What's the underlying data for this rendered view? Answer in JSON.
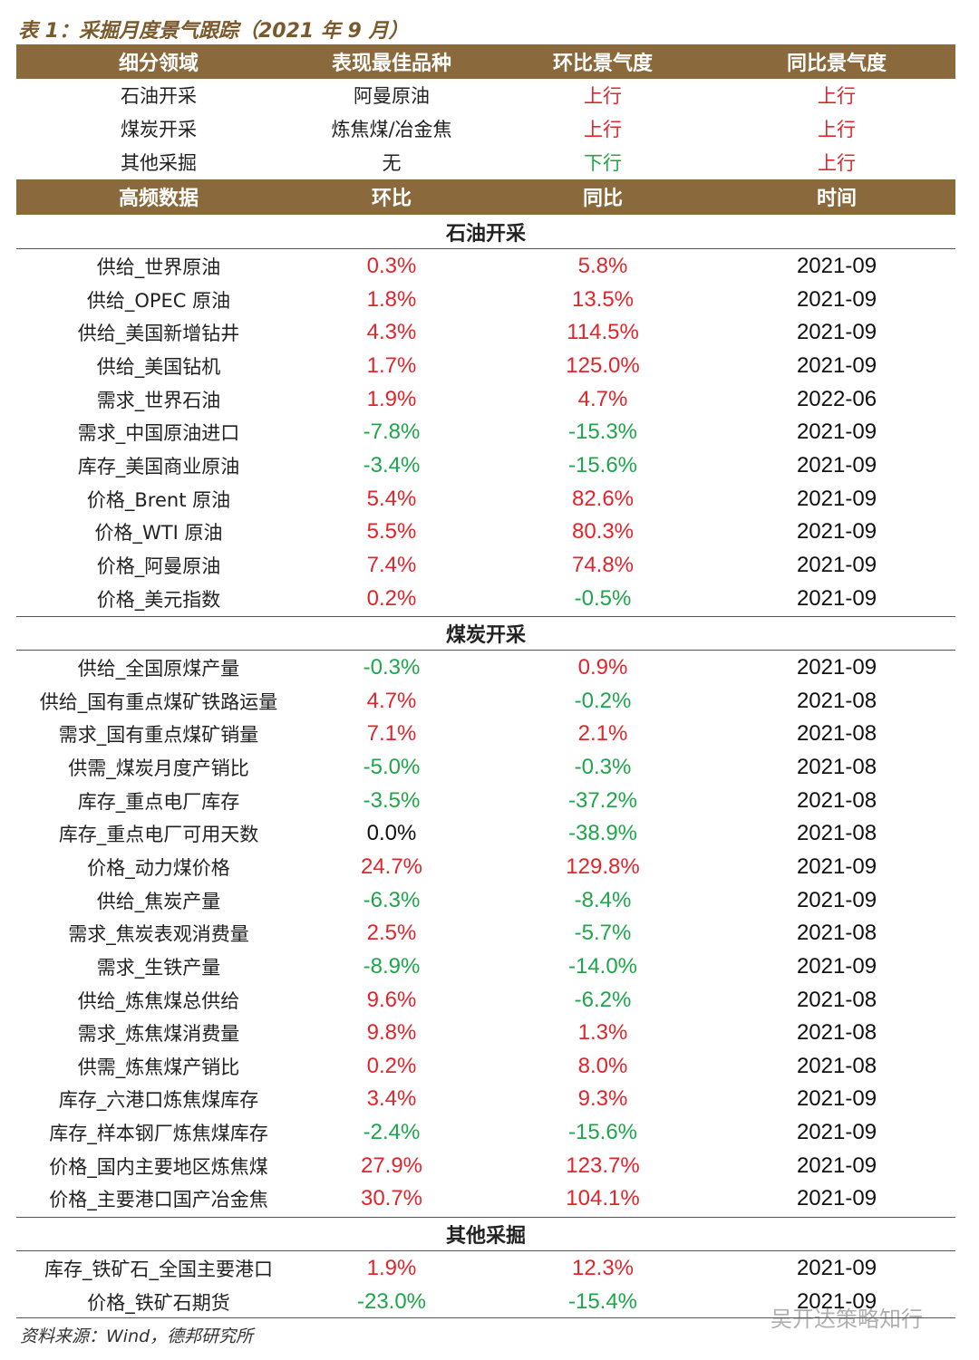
{
  "title": "表 1：采掘月度景气跟踪（2021 年 9 月）",
  "summary": {
    "header": [
      "细分领域",
      "表现最佳品种",
      "环比景气度",
      "同比景气度"
    ],
    "rows": [
      {
        "cells": [
          "石油开采",
          "阿曼原油",
          "上行",
          "上行"
        ],
        "colors": [
          "#222",
          "#222",
          "#e0262c",
          "#e0262c"
        ]
      },
      {
        "cells": [
          "煤炭开采",
          "炼焦煤/冶金焦",
          "上行",
          "上行"
        ],
        "colors": [
          "#222",
          "#222",
          "#e0262c",
          "#e0262c"
        ]
      },
      {
        "cells": [
          "其他采掘",
          "无",
          "下行",
          "上行"
        ],
        "colors": [
          "#222",
          "#222",
          "#1ea64a",
          "#e0262c"
        ]
      }
    ]
  },
  "detail": {
    "header": [
      "高频数据",
      "环比",
      "同比",
      "时间"
    ],
    "up_color": "#e0262c",
    "down_color": "#1ea64a",
    "flat_color": "#111",
    "sections": [
      {
        "name": "石油开采",
        "rows": [
          [
            "供给_世界原油",
            "0.3%",
            "5.8%",
            "2021-09"
          ],
          [
            "供给_OPEC 原油",
            "1.8%",
            "13.5%",
            "2021-09"
          ],
          [
            "供给_美国新增钻井",
            "4.3%",
            "114.5%",
            "2021-09"
          ],
          [
            "供给_美国钻机",
            "1.7%",
            "125.0%",
            "2021-09"
          ],
          [
            "需求_世界石油",
            "1.9%",
            "4.7%",
            "2022-06"
          ],
          [
            "需求_中国原油进口",
            "-7.8%",
            "-15.3%",
            "2021-09"
          ],
          [
            "库存_美国商业原油",
            "-3.4%",
            "-15.6%",
            "2021-09"
          ],
          [
            "价格_Brent 原油",
            "5.4%",
            "82.6%",
            "2021-09"
          ],
          [
            "价格_WTI 原油",
            "5.5%",
            "80.3%",
            "2021-09"
          ],
          [
            "价格_阿曼原油",
            "7.4%",
            "74.8%",
            "2021-09"
          ],
          [
            "价格_美元指数",
            "0.2%",
            "-0.5%",
            "2021-09"
          ]
        ]
      },
      {
        "name": "煤炭开采",
        "rows": [
          [
            "供给_全国原煤产量",
            "-0.3%",
            "0.9%",
            "2021-09"
          ],
          [
            "供给_国有重点煤矿铁路运量",
            "4.7%",
            "-0.2%",
            "2021-08"
          ],
          [
            "需求_国有重点煤矿销量",
            "7.1%",
            "2.1%",
            "2021-08"
          ],
          [
            "供需_煤炭月度产销比",
            "-5.0%",
            "-0.3%",
            "2021-08"
          ],
          [
            "库存_重点电厂库存",
            "-3.5%",
            "-37.2%",
            "2021-08"
          ],
          [
            "库存_重点电厂可用天数",
            "0.0%",
            "-38.9%",
            "2021-08"
          ],
          [
            "价格_动力煤价格",
            "24.7%",
            "129.8%",
            "2021-09"
          ],
          [
            "供给_焦炭产量",
            "-6.3%",
            "-8.4%",
            "2021-09"
          ],
          [
            "需求_焦炭表观消费量",
            "2.5%",
            "-5.7%",
            "2021-08"
          ],
          [
            "需求_生铁产量",
            "-8.9%",
            "-14.0%",
            "2021-09"
          ],
          [
            "供给_炼焦煤总供给",
            "9.6%",
            "-6.2%",
            "2021-08"
          ],
          [
            "需求_炼焦煤消费量",
            "9.8%",
            "1.3%",
            "2021-08"
          ],
          [
            "供需_炼焦煤产销比",
            "0.2%",
            "8.0%",
            "2021-08"
          ],
          [
            "库存_六港口炼焦煤库存",
            "3.4%",
            "9.3%",
            "2021-09"
          ],
          [
            "库存_样本钢厂炼焦煤库存",
            "-2.4%",
            "-15.6%",
            "2021-09"
          ],
          [
            "价格_国内主要地区炼焦煤",
            "27.9%",
            "123.7%",
            "2021-09"
          ],
          [
            "价格_主要港口国产冶金焦",
            "30.7%",
            "104.1%",
            "2021-09"
          ]
        ]
      },
      {
        "name": "其他采掘",
        "rows": [
          [
            "库存_铁矿石_全国主要港口",
            "1.9%",
            "12.3%",
            "2021-09"
          ],
          [
            "价格_铁矿石期货",
            "-23.0%",
            "-15.4%",
            "2021-09"
          ]
        ]
      }
    ]
  },
  "source": "资料来源：Wind，德邦研究所",
  "watermark": "吴开达策略知行"
}
